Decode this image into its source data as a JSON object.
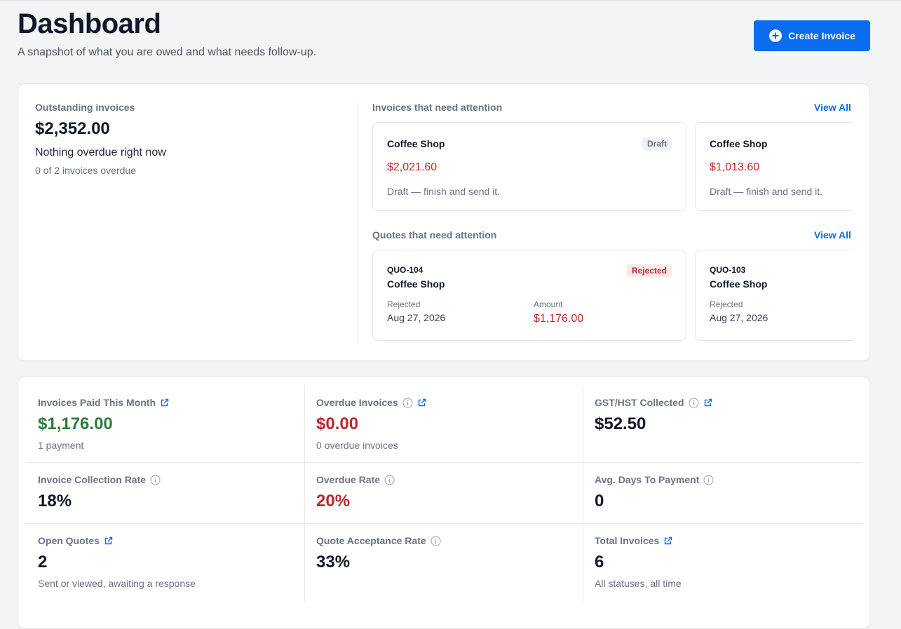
{
  "header": {
    "title": "Dashboard",
    "subtitle": "A snapshot of what you are owed and what needs follow-up.",
    "button": "Create Invoice"
  },
  "summary": {
    "label": "Outstanding invoices",
    "amount": "$2,352.00",
    "status": "Nothing overdue right now",
    "detail": "0 of 2 invoices overdue"
  },
  "invoices_attention": {
    "title": "Invoices that need attention",
    "link": "View All",
    "cards": [
      {
        "client": "Coffee Shop",
        "badge": "Draft",
        "amount": "$2,021.60",
        "note": "Draft — finish and send it."
      },
      {
        "client": "Coffee Shop",
        "amount": "$1,013.60",
        "note": "Draft — finish and send it."
      }
    ]
  },
  "quotes_attention": {
    "title": "Quotes that need attention",
    "link": "View All",
    "cards": [
      {
        "number": "QUO-104",
        "client": "Coffee Shop",
        "badge": "Rejected",
        "status_label": "Rejected",
        "date": "Aug 27, 2026",
        "amount_label": "Amount",
        "amount": "$1,176.00"
      },
      {
        "number": "QUO-103",
        "client": "Coffee Shop",
        "status_label": "Rejected",
        "date": "Aug 27, 2026"
      }
    ]
  },
  "metrics": [
    {
      "label": "Invoices Paid This Month",
      "value": "$1,176.00",
      "note": "1 payment"
    },
    {
      "label": "Overdue Invoices",
      "value": "$0.00",
      "note": "0 overdue invoices"
    },
    {
      "label": "GST/HST Collected",
      "value": "$52.50"
    },
    {
      "label": "Invoice Collection Rate",
      "value": "18%"
    },
    {
      "label": "Overdue Rate",
      "value": "20%"
    },
    {
      "label": "Avg. Days To Payment",
      "value": "0"
    },
    {
      "label": "Open Quotes",
      "value": "2",
      "note": "Sent or viewed, awaiting a response"
    },
    {
      "label": "Quote Acceptance Rate",
      "value": "33%"
    },
    {
      "label": "Total Invoices",
      "value": "6",
      "note": "All statuses, all time"
    }
  ]
}
